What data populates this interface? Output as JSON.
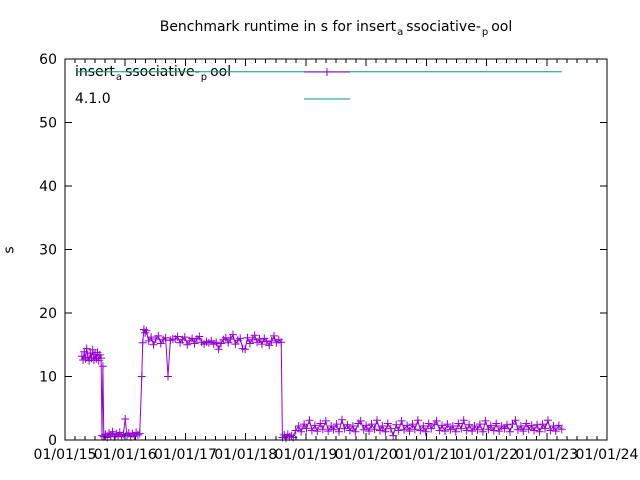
{
  "title": {
    "part1": "Benchmark runtime in s for insert",
    "sub1": "a",
    "part2": "ssociative-",
    "sub2": "p",
    "part3": "ool"
  },
  "axes": {
    "y_label": "s"
  },
  "legend": {
    "position": "top-left",
    "entries": [
      {
        "part1": "insert",
        "sub1": "a",
        "part2": "ssociative-",
        "sub2": "p",
        "part3": "ool",
        "color": "#9400d3",
        "marker": "plus"
      },
      {
        "label": "4.1.0",
        "color": "#009e73",
        "marker": "none"
      }
    ]
  },
  "colors": {
    "series1": "#9400d3",
    "series2": "#009e73",
    "axis": "#000000",
    "background": "#ffffff"
  },
  "chart_data": {
    "type": "line",
    "title": "Benchmark runtime in s for insert_associative-_pool",
    "xlabel": "",
    "ylabel": "s",
    "ylim": [
      0,
      60
    ],
    "y_ticks": [
      0,
      10,
      20,
      30,
      40,
      50,
      60
    ],
    "grid": false,
    "legend_position": "top-left",
    "x_axis": {
      "type": "date",
      "range_years": [
        2015,
        2024
      ],
      "tick_labels": [
        "01/01/15",
        "01/01/16",
        "01/01/17",
        "01/01/18",
        "01/01/19",
        "01/01/20",
        "01/01/21",
        "01/01/22",
        "01/01/23",
        "01/01/24"
      ],
      "minor_divisions": 6
    },
    "series": [
      {
        "name": "insert_associative-_pool",
        "role": "benchmark",
        "color": "#9400d3",
        "style": "linespoints",
        "marker": "plus",
        "points": [
          [
            2015.28,
            13.2
          ],
          [
            2015.3,
            12.6
          ],
          [
            2015.32,
            13.9
          ],
          [
            2015.34,
            12.8
          ],
          [
            2015.36,
            14.4
          ],
          [
            2015.38,
            13.0
          ],
          [
            2015.4,
            12.5
          ],
          [
            2015.42,
            13.7
          ],
          [
            2015.44,
            12.9
          ],
          [
            2015.46,
            14.2
          ],
          [
            2015.48,
            12.6
          ],
          [
            2015.5,
            13.5
          ],
          [
            2015.52,
            12.8
          ],
          [
            2015.54,
            13.8
          ],
          [
            2015.56,
            12.5
          ],
          [
            2015.58,
            13.4
          ],
          [
            2015.6,
            12.9
          ],
          [
            2015.615,
            0.7
          ],
          [
            2015.63,
            11.6
          ],
          [
            2015.645,
            0.5
          ],
          [
            2015.67,
            0.9
          ],
          [
            2015.7,
            0.4
          ],
          [
            2015.73,
            1.1
          ],
          [
            2015.76,
            0.6
          ],
          [
            2015.79,
            1.3
          ],
          [
            2015.82,
            0.5
          ],
          [
            2015.85,
            1.0
          ],
          [
            2015.88,
            0.6
          ],
          [
            2015.91,
            1.2
          ],
          [
            2015.94,
            0.5
          ],
          [
            2015.97,
            0.9
          ],
          [
            2016.0,
            3.3
          ],
          [
            2016.03,
            0.7
          ],
          [
            2016.06,
            1.1
          ],
          [
            2016.09,
            0.5
          ],
          [
            2016.12,
            1.0
          ],
          [
            2016.15,
            0.6
          ],
          [
            2016.18,
            1.2
          ],
          [
            2016.21,
            0.8
          ],
          [
            2016.24,
            1.0
          ],
          [
            2016.275,
            10.0
          ],
          [
            2016.29,
            15.3
          ],
          [
            2016.31,
            17.4
          ],
          [
            2016.33,
            16.9
          ],
          [
            2016.35,
            17.2
          ],
          [
            2016.39,
            15.6
          ],
          [
            2016.43,
            16.2
          ],
          [
            2016.47,
            15.0
          ],
          [
            2016.51,
            15.9
          ],
          [
            2016.55,
            16.4
          ],
          [
            2016.59,
            15.2
          ],
          [
            2016.63,
            15.8
          ],
          [
            2016.67,
            16.1
          ],
          [
            2016.71,
            10.0
          ],
          [
            2016.75,
            15.7
          ],
          [
            2016.79,
            15.9
          ],
          [
            2016.83,
            15.9
          ],
          [
            2016.87,
            16.3
          ],
          [
            2016.91,
            15.3
          ],
          [
            2016.95,
            15.8
          ],
          [
            2016.99,
            16.2
          ],
          [
            2017.03,
            15.0
          ],
          [
            2017.07,
            15.6
          ],
          [
            2017.11,
            16.0
          ],
          [
            2017.15,
            15.2
          ],
          [
            2017.19,
            15.9
          ],
          [
            2017.23,
            16.3
          ],
          [
            2017.27,
            15.4
          ],
          [
            2017.31,
            15.1
          ],
          [
            2017.35,
            15.5
          ],
          [
            2017.39,
            15.3
          ],
          [
            2017.43,
            15.6
          ],
          [
            2017.47,
            15.1
          ],
          [
            2017.51,
            15.4
          ],
          [
            2017.55,
            14.3
          ],
          [
            2017.59,
            15.2
          ],
          [
            2017.63,
            15.8
          ],
          [
            2017.67,
            16.1
          ],
          [
            2017.71,
            15.3
          ],
          [
            2017.75,
            15.9
          ],
          [
            2017.79,
            16.6
          ],
          [
            2017.83,
            15.1
          ],
          [
            2017.87,
            15.7
          ],
          [
            2017.91,
            16.0
          ],
          [
            2017.95,
            14.4
          ],
          [
            2017.99,
            14.3
          ],
          [
            2018.03,
            16.1
          ],
          [
            2018.07,
            15.2
          ],
          [
            2018.11,
            15.8
          ],
          [
            2018.15,
            16.5
          ],
          [
            2018.19,
            15.4
          ],
          [
            2018.23,
            15.9
          ],
          [
            2018.27,
            15.1
          ],
          [
            2018.31,
            16.0
          ],
          [
            2018.35,
            15.5
          ],
          [
            2018.39,
            14.9
          ],
          [
            2018.43,
            15.6
          ],
          [
            2018.47,
            16.4
          ],
          [
            2018.51,
            15.3
          ],
          [
            2018.55,
            15.8
          ],
          [
            2018.59,
            15.4
          ],
          [
            2018.61,
            0.4
          ],
          [
            2018.64,
            0.8
          ],
          [
            2018.67,
            0.3
          ],
          [
            2018.7,
            0.9
          ],
          [
            2018.73,
            0.5
          ],
          [
            2018.76,
            0.7
          ],
          [
            2018.79,
            0.4
          ],
          [
            2018.83,
            1.5
          ],
          [
            2018.88,
            2.2
          ],
          [
            2018.92,
            1.3
          ],
          [
            2018.97,
            2.5
          ],
          [
            2019.01,
            1.8
          ],
          [
            2019.06,
            3.1
          ],
          [
            2019.1,
            1.5
          ],
          [
            2019.15,
            2.3
          ],
          [
            2019.19,
            1.4
          ],
          [
            2019.24,
            2.6
          ],
          [
            2019.28,
            1.7
          ],
          [
            2019.33,
            3.0
          ],
          [
            2019.37,
            1.4
          ],
          [
            2019.42,
            2.2
          ],
          [
            2019.46,
            1.6
          ],
          [
            2019.51,
            2.5
          ],
          [
            2019.55,
            1.3
          ],
          [
            2019.6,
            3.2
          ],
          [
            2019.64,
            1.8
          ],
          [
            2019.69,
            2.4
          ],
          [
            2019.73,
            1.5
          ],
          [
            2019.78,
            2.2
          ],
          [
            2019.82,
            1.3
          ],
          [
            2019.87,
            2.6
          ],
          [
            2019.91,
            3.0
          ],
          [
            2019.96,
            1.6
          ],
          [
            2020.0,
            2.3
          ],
          [
            2020.05,
            1.4
          ],
          [
            2020.09,
            2.5
          ],
          [
            2020.14,
            1.7
          ],
          [
            2020.18,
            3.1
          ],
          [
            2020.23,
            1.5
          ],
          [
            2020.27,
            2.2
          ],
          [
            2020.32,
            1.3
          ],
          [
            2020.36,
            2.6
          ],
          [
            2020.41,
            1.8
          ],
          [
            2020.45,
            0.7
          ],
          [
            2020.5,
            2.4
          ],
          [
            2020.54,
            1.5
          ],
          [
            2020.59,
            3.0
          ],
          [
            2020.63,
            1.6
          ],
          [
            2020.68,
            2.3
          ],
          [
            2020.72,
            1.4
          ],
          [
            2020.77,
            2.5
          ],
          [
            2020.81,
            1.7
          ],
          [
            2020.86,
            3.1
          ],
          [
            2020.9,
            1.5
          ],
          [
            2020.95,
            2.2
          ],
          [
            2020.99,
            1.3
          ],
          [
            2021.04,
            2.6
          ],
          [
            2021.08,
            1.8
          ],
          [
            2021.13,
            2.4
          ],
          [
            2021.17,
            3.0
          ],
          [
            2021.22,
            1.5
          ],
          [
            2021.26,
            2.3
          ],
          [
            2021.31,
            1.4
          ],
          [
            2021.35,
            2.5
          ],
          [
            2021.4,
            1.6
          ],
          [
            2021.44,
            2.2
          ],
          [
            2021.49,
            1.3
          ],
          [
            2021.53,
            2.6
          ],
          [
            2021.58,
            1.8
          ],
          [
            2021.62,
            3.1
          ],
          [
            2021.67,
            1.5
          ],
          [
            2021.71,
            2.4
          ],
          [
            2021.76,
            1.4
          ],
          [
            2021.8,
            2.2
          ],
          [
            2021.85,
            1.6
          ],
          [
            2021.89,
            2.5
          ],
          [
            2021.94,
            1.3
          ],
          [
            2021.98,
            3.0
          ],
          [
            2022.03,
            1.7
          ],
          [
            2022.07,
            2.3
          ],
          [
            2022.12,
            1.5
          ],
          [
            2022.16,
            2.6
          ],
          [
            2022.21,
            1.4
          ],
          [
            2022.25,
            2.2
          ],
          [
            2022.3,
            1.8
          ],
          [
            2022.34,
            2.4
          ],
          [
            2022.39,
            1.3
          ],
          [
            2022.43,
            2.5
          ],
          [
            2022.48,
            3.1
          ],
          [
            2022.52,
            1.6
          ],
          [
            2022.57,
            2.2
          ],
          [
            2022.61,
            1.4
          ],
          [
            2022.66,
            2.6
          ],
          [
            2022.7,
            1.7
          ],
          [
            2022.75,
            2.3
          ],
          [
            2022.79,
            1.5
          ],
          [
            2022.84,
            2.4
          ],
          [
            2022.88,
            1.3
          ],
          [
            2022.93,
            2.5
          ],
          [
            2022.97,
            1.8
          ],
          [
            2023.02,
            3.1
          ],
          [
            2023.06,
            1.5
          ],
          [
            2023.11,
            2.2
          ],
          [
            2023.15,
            1.4
          ],
          [
            2023.2,
            2.3
          ],
          [
            2023.25,
            1.7
          ]
        ]
      },
      {
        "name": "4.1.0",
        "role": "version",
        "color": "#009e73",
        "style": "lines",
        "marker": "none",
        "points": [
          [
            2015.2,
            58
          ],
          [
            2023.25,
            58
          ]
        ]
      }
    ]
  }
}
